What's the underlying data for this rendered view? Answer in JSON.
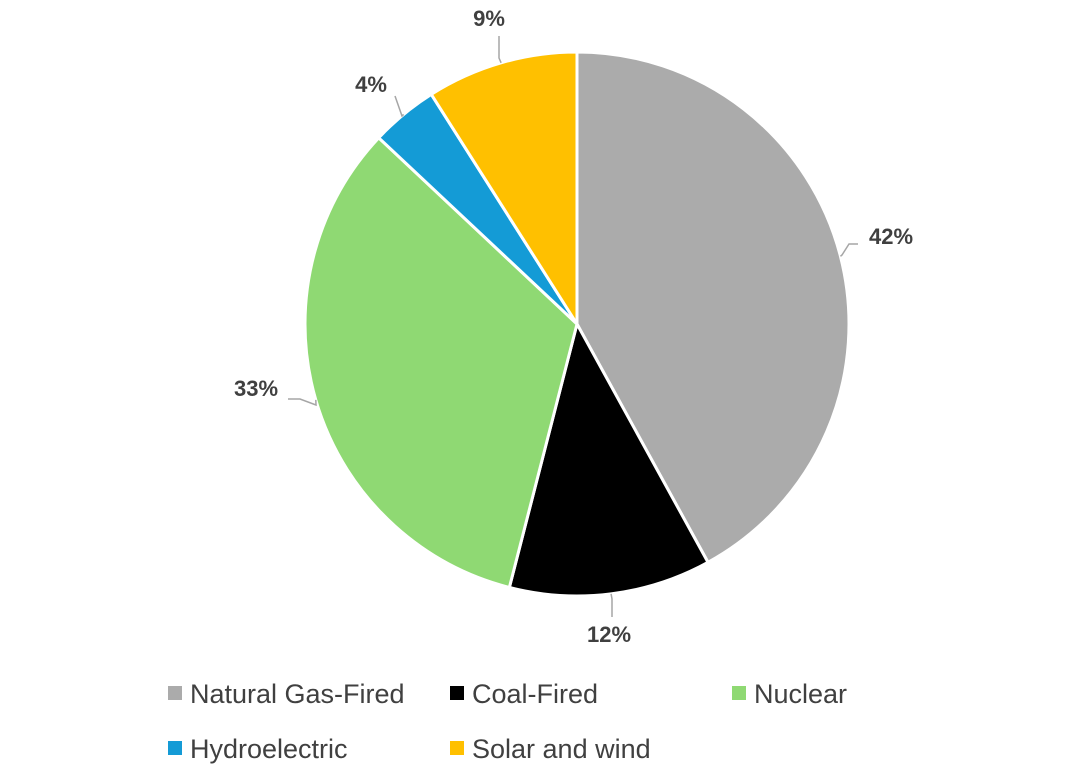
{
  "chart_data": {
    "type": "pie",
    "title": "",
    "categories": [
      "Natural Gas-Fired",
      "Coal-Fired",
      "Nuclear",
      "Hydroelectric",
      "Solar and wind"
    ],
    "values": [
      42,
      12,
      33,
      4,
      9
    ],
    "labels": [
      "42%",
      "12%",
      "33%",
      "4%",
      "9%"
    ],
    "colors": [
      "#ababab",
      "#000000",
      "#8fd973",
      "#149bd6",
      "#ffc000"
    ],
    "start_angle_deg": 0,
    "direction": "clockwise",
    "legend_position": "bottom"
  }
}
